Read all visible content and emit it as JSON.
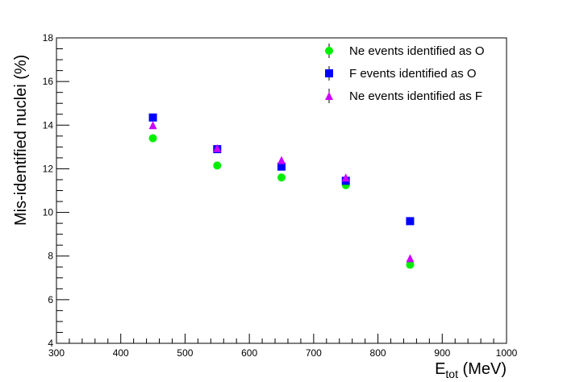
{
  "chart_data": {
    "type": "scatter",
    "xlabel": {
      "main": "E",
      "sub": "tot",
      "unit": " (MeV)"
    },
    "ylabel": "Mis-identified nuclei (%)",
    "xlim": [
      300,
      1000
    ],
    "ylim": [
      4,
      18
    ],
    "x_ticks": [
      "300",
      "400",
      "500",
      "600",
      "700",
      "800",
      "900",
      "1000"
    ],
    "y_ticks": [
      "4",
      "6",
      "8",
      "10",
      "12",
      "14",
      "16",
      "18"
    ],
    "grid": false,
    "legend_position": "top-right",
    "series": [
      {
        "name": "Ne events identified as O",
        "marker": "circle",
        "color": "#00ee00",
        "x": [
          450,
          550,
          650,
          750,
          850
        ],
        "y": [
          13.4,
          12.15,
          11.6,
          11.25,
          7.6
        ]
      },
      {
        "name": "F events identified as O",
        "marker": "square",
        "color": "#0000ff",
        "x": [
          450,
          550,
          650,
          750,
          850
        ],
        "y": [
          14.35,
          12.9,
          12.1,
          11.45,
          9.6
        ]
      },
      {
        "name": "Ne events identified as F",
        "marker": "triangle",
        "color": "#cc00ff",
        "x": [
          450,
          550,
          650,
          750,
          850
        ],
        "y": [
          14.0,
          12.95,
          12.4,
          11.6,
          7.9
        ]
      }
    ]
  }
}
